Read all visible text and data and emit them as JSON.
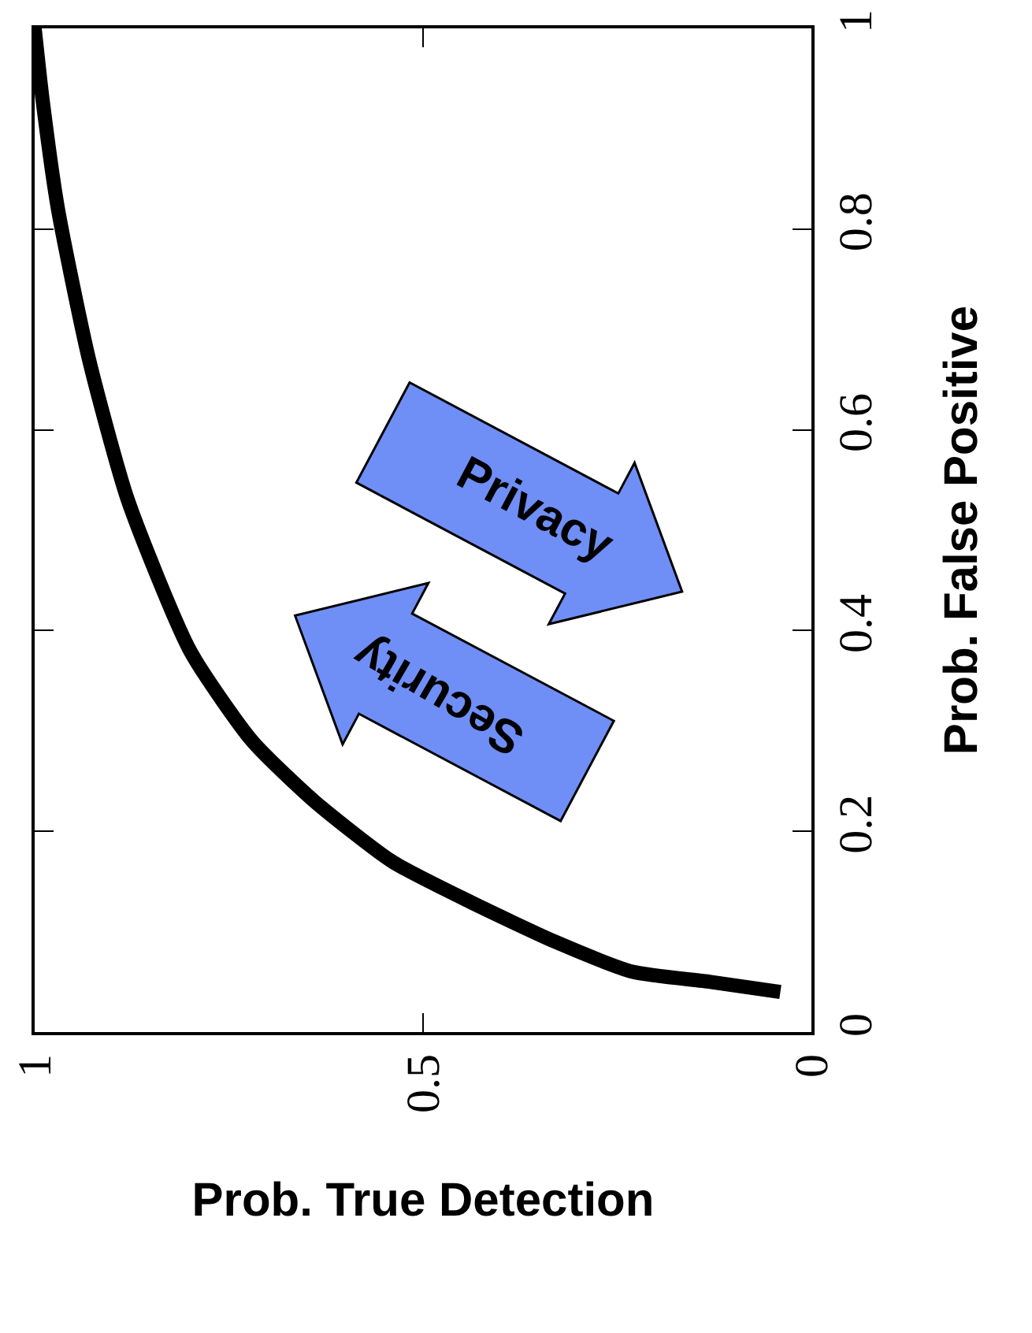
{
  "chart_data": {
    "type": "line",
    "xlabel": "Prob. True Detection",
    "ylabel": "Prob. False Positive",
    "x": [
      0.04,
      0.13,
      0.23,
      0.33,
      0.44,
      0.54,
      0.64,
      0.72,
      0.8,
      0.88,
      0.93,
      0.97,
      0.99,
      1.0
    ],
    "series": [
      {
        "color": "#000000",
        "values": [
          0.04,
          0.05,
          0.06,
          0.09,
          0.13,
          0.17,
          0.23,
          0.29,
          0.38,
          0.53,
          0.67,
          0.82,
          0.93,
          1.0
        ]
      }
    ],
    "xlim": [
      1,
      0
    ],
    "xticks": [
      1,
      0.5,
      0
    ],
    "ylim": [
      0,
      1
    ],
    "yticks": [
      0,
      0.2,
      0.4,
      0.6,
      0.8,
      1
    ],
    "annotations": [
      "Privacy",
      "Security"
    ],
    "grid": false,
    "marker": "none",
    "line_style": "solid"
  }
}
